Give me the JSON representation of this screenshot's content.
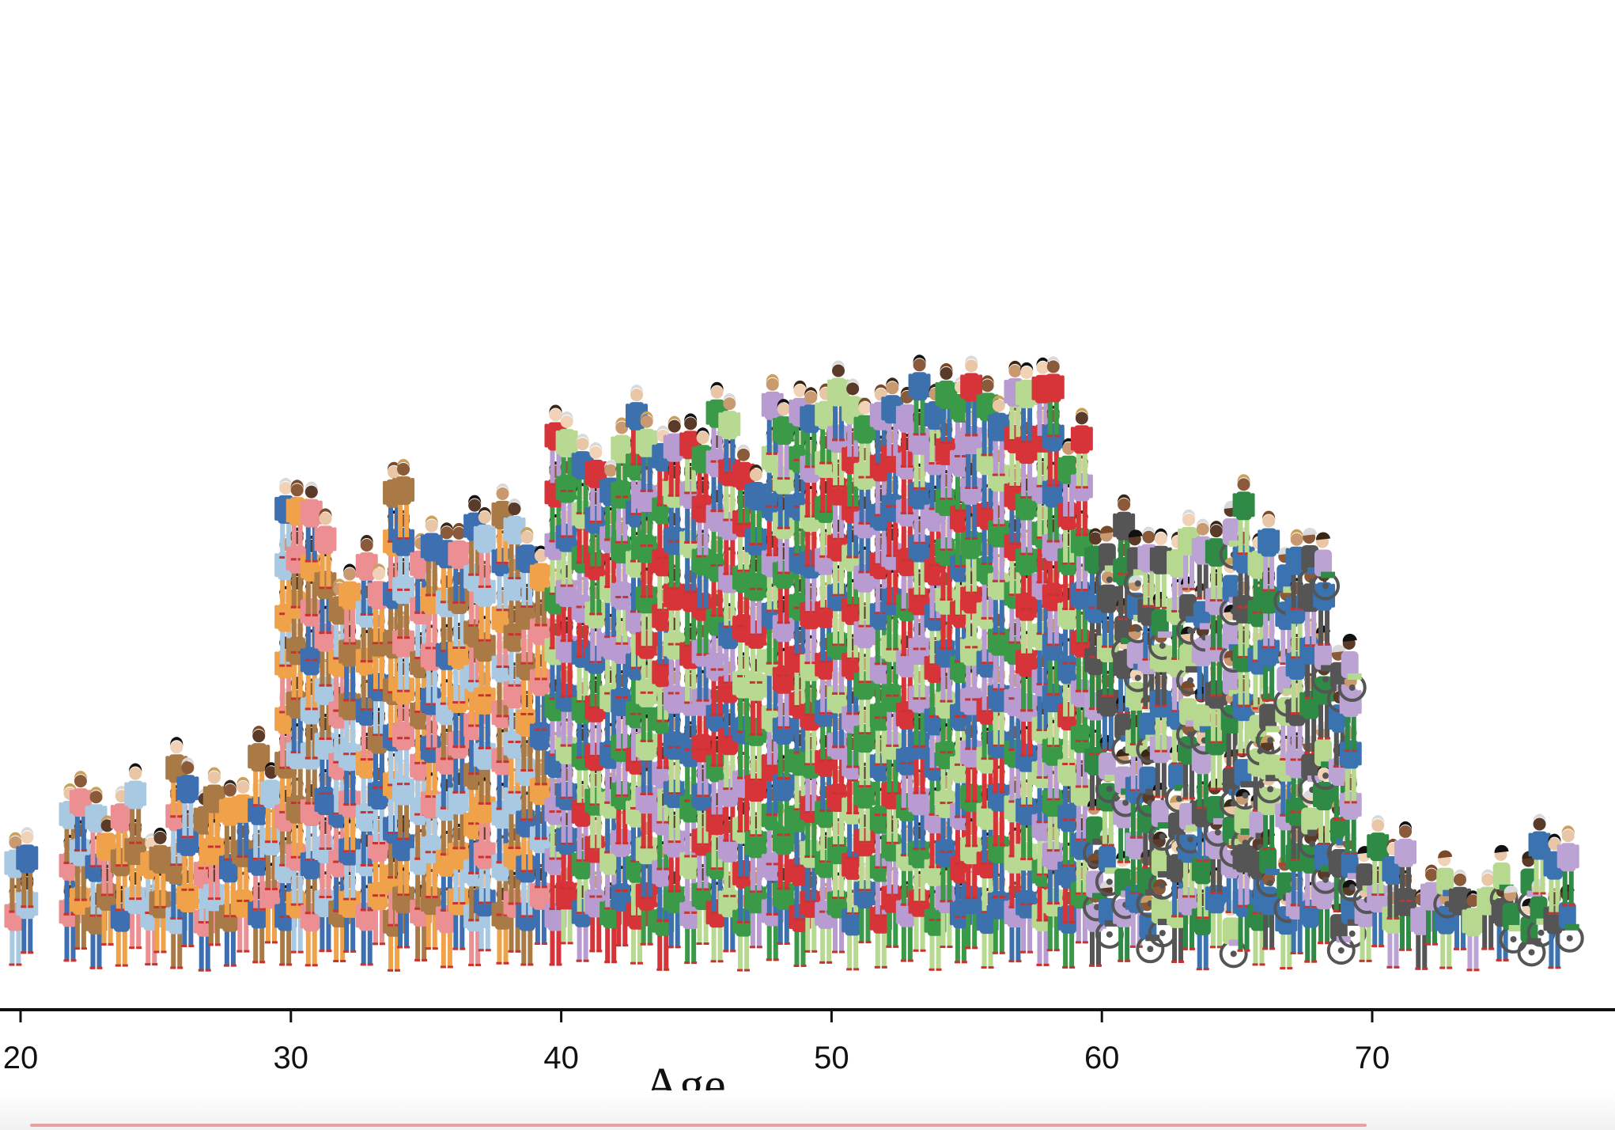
{
  "chart_data": {
    "type": "pictogram-histogram",
    "xlabel": "Age",
    "xlim": [
      19.2,
      78.5
    ],
    "xticks": [
      20,
      30,
      40,
      50,
      60,
      70
    ],
    "ylabel": "",
    "grid": false,
    "bins": [
      {
        "age": 19,
        "count": 10
      },
      {
        "age": 20,
        "count": 20
      },
      {
        "age": 22,
        "count": 32
      },
      {
        "age": 23,
        "count": 28
      },
      {
        "age": 24,
        "count": 30
      },
      {
        "age": 25,
        "count": 24
      },
      {
        "age": 26,
        "count": 34
      },
      {
        "age": 27,
        "count": 34
      },
      {
        "age": 28,
        "count": 30
      },
      {
        "age": 29,
        "count": 36
      },
      {
        "age": 30,
        "count": 76
      },
      {
        "age": 31,
        "count": 74
      },
      {
        "age": 32,
        "count": 62
      },
      {
        "age": 33,
        "count": 66
      },
      {
        "age": 34,
        "count": 78
      },
      {
        "age": 35,
        "count": 70
      },
      {
        "age": 36,
        "count": 70
      },
      {
        "age": 37,
        "count": 72
      },
      {
        "age": 38,
        "count": 74
      },
      {
        "age": 39,
        "count": 68
      },
      {
        "age": 40,
        "count": 86
      },
      {
        "age": 41,
        "count": 84
      },
      {
        "age": 42,
        "count": 82
      },
      {
        "age": 43,
        "count": 88
      },
      {
        "age": 44,
        "count": 86
      },
      {
        "age": 45,
        "count": 86
      },
      {
        "age": 46,
        "count": 88
      },
      {
        "age": 47,
        "count": 82
      },
      {
        "age": 48,
        "count": 88
      },
      {
        "age": 49,
        "count": 90
      },
      {
        "age": 50,
        "count": 92
      },
      {
        "age": 51,
        "count": 90
      },
      {
        "age": 52,
        "count": 94
      },
      {
        "age": 53,
        "count": 92
      },
      {
        "age": 54,
        "count": 90
      },
      {
        "age": 55,
        "count": 92
      },
      {
        "age": 56,
        "count": 88
      },
      {
        "age": 57,
        "count": 94
      },
      {
        "age": 58,
        "count": 94
      },
      {
        "age": 59,
        "count": 86
      },
      {
        "age": 60,
        "count": 70
      },
      {
        "age": 61,
        "count": 72
      },
      {
        "age": 62,
        "count": 70
      },
      {
        "age": 63,
        "count": 68
      },
      {
        "age": 64,
        "count": 72
      },
      {
        "age": 65,
        "count": 74
      },
      {
        "age": 66,
        "count": 70
      },
      {
        "age": 67,
        "count": 68
      },
      {
        "age": 68,
        "count": 72
      },
      {
        "age": 69,
        "count": 56
      },
      {
        "age": 70,
        "count": 24
      },
      {
        "age": 71,
        "count": 22
      },
      {
        "age": 72,
        "count": 18
      },
      {
        "age": 73,
        "count": 20
      },
      {
        "age": 74,
        "count": 16
      },
      {
        "age": 75,
        "count": 20
      },
      {
        "age": 76,
        "count": 22
      },
      {
        "age": 77,
        "count": 24
      }
    ],
    "figure_groups": [
      {
        "age_range": [
          19,
          39
        ],
        "palette": [
          "#f0a24b",
          "#eb8f93",
          "#3e6fb0",
          "#a9c8e2",
          "#a97a46"
        ]
      },
      {
        "age_range": [
          40,
          59
        ],
        "palette": [
          "#3d71ad",
          "#3a9a48",
          "#b79bd1",
          "#d7343a",
          "#b8d992"
        ]
      },
      {
        "age_range": [
          60,
          78
        ],
        "palette": [
          "#3b72b0",
          "#b7d98f",
          "#bba4d3",
          "#2e8a44",
          "#555555"
        ],
        "includes_wheelchairs": true
      }
    ],
    "colors": {
      "axis": "#111111",
      "background": "#ffffff",
      "accent_line": "#e9a1a1"
    }
  }
}
